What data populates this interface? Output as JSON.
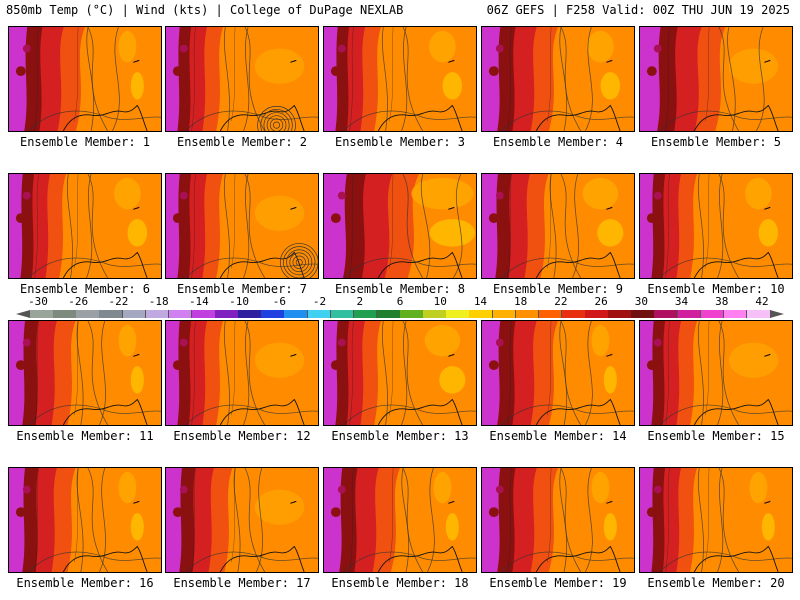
{
  "header": {
    "left": "850mb Temp (°C) | Wind (kts) | College of DuPage NEXLAB",
    "right": "06Z GEFS | F258 Valid: 00Z THU JUN 19 2025"
  },
  "members": [
    {
      "label": "Ensemble Member: 1",
      "hot": 0.4,
      "cool": 0.1,
      "storm": false
    },
    {
      "label": "Ensemble Member: 2",
      "hot": 0.3,
      "cool": 0.05,
      "storm": true
    },
    {
      "label": "Ensemble Member: 3",
      "hot": 0.3,
      "cool": 0.15,
      "storm": false
    },
    {
      "label": "Ensemble Member: 4",
      "hot": 0.4,
      "cool": 0.15,
      "storm": false
    },
    {
      "label": "Ensemble Member: 5",
      "hot": 0.45,
      "cool": 0.05,
      "storm": false
    },
    {
      "label": "Ensemble Member: 6",
      "hot": 0.3,
      "cool": 0.15,
      "storm": false
    },
    {
      "label": "Ensemble Member: 7",
      "hot": 0.3,
      "cool": 0.05,
      "storm": true
    },
    {
      "label": "Ensemble Member: 8",
      "hot": 0.5,
      "cool": 0.35,
      "storm": false
    },
    {
      "label": "Ensemble Member: 9",
      "hot": 0.35,
      "cool": 0.2,
      "storm": false
    },
    {
      "label": "Ensemble Member: 10",
      "hot": 0.3,
      "cool": 0.15,
      "storm": false
    },
    {
      "label": "Ensemble Member: 11",
      "hot": 0.35,
      "cool": 0.1,
      "storm": false
    },
    {
      "label": "Ensemble Member: 12",
      "hot": 0.3,
      "cool": 0.05,
      "storm": false
    },
    {
      "label": "Ensemble Member: 13",
      "hot": 0.3,
      "cool": 0.2,
      "storm": false
    },
    {
      "label": "Ensemble Member: 14",
      "hot": 0.4,
      "cool": 0.1,
      "storm": false
    },
    {
      "label": "Ensemble Member: 15",
      "hot": 0.3,
      "cool": 0.05,
      "storm": false
    },
    {
      "label": "Ensemble Member: 16",
      "hot": 0.35,
      "cool": 0.1,
      "storm": false
    },
    {
      "label": "Ensemble Member: 17",
      "hot": 0.35,
      "cool": 0.05,
      "storm": false
    },
    {
      "label": "Ensemble Member: 18",
      "hot": 0.4,
      "cool": 0.1,
      "storm": false
    },
    {
      "label": "Ensemble Member: 19",
      "hot": 0.4,
      "cool": 0.1,
      "storm": false
    },
    {
      "label": "Ensemble Member: 20",
      "hot": 0.3,
      "cool": 0.1,
      "storm": false
    }
  ],
  "colorbar": {
    "tick_labels": [
      "-30",
      "-26",
      "-22",
      "-18",
      "-14",
      "-10",
      "-6",
      "-2",
      "2",
      "6",
      "10",
      "14",
      "18",
      "22",
      "26",
      "30",
      "34",
      "38",
      "42"
    ],
    "colors": [
      "#9aa59a",
      "#7e8a7e",
      "#9aa0a6",
      "#808890",
      "#a4a8c0",
      "#c0a8e0",
      "#d080f0",
      "#c040e0",
      "#8020c0",
      "#3020a0",
      "#2040e0",
      "#2090f0",
      "#40d0f0",
      "#30c0a0",
      "#20a050",
      "#208030",
      "#60b020",
      "#c0d020",
      "#f0f020",
      "#ffd000",
      "#ffb000",
      "#ff9000",
      "#ff6000",
      "#e83010",
      "#d01818",
      "#a01010",
      "#701010",
      "#b01060",
      "#d020a0",
      "#f040d0",
      "#ff80f0",
      "#f8c0f8"
    ],
    "palette": {
      "magenta": "#cc33cc",
      "purple_red": "#aa1155",
      "dark_red": "#8b1010",
      "red": "#d42020",
      "red_orange": "#f05010",
      "orange": "#ff8c00",
      "light_orange": "#ffa500",
      "yellow_orange": "#ffc000"
    }
  }
}
